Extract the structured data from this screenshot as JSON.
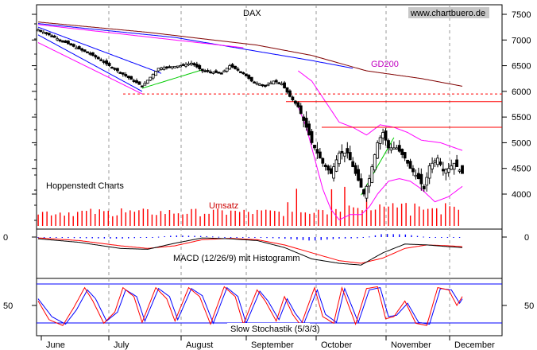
{
  "title": "DAX",
  "source": "www.chartbuero.de",
  "provider": "Hoppenstedt Charts",
  "volume_label": "Umsatz",
  "gd200_label": "GD200",
  "macd_label": "MACD (12/26/9) mit Histogramm",
  "stoch_label": "Slow Stochastik (5/3/3)",
  "colors": {
    "candles": "#000000",
    "ma200": "#800000",
    "bollinger": "#ff00ff",
    "channel": "#0000ff",
    "trend": "#00cc00",
    "resistance": "#ff0000",
    "support": "#ff0000",
    "volume": "#ff0000",
    "macd": "#000000",
    "signal": "#ff0000",
    "histogram": "#0000ff",
    "stoch_k": "#ff0000",
    "stoch_d": "#0000ff"
  },
  "chart_data": {
    "type": "candlestick",
    "title": "DAX",
    "y_ticks": [
      "7500",
      "7000",
      "6500",
      "6000",
      "5500",
      "5000",
      "4500",
      "4000"
    ],
    "y_range": [
      3450,
      7700
    ],
    "months": [
      "June",
      "July",
      "August",
      "September",
      "October",
      "November",
      "December"
    ],
    "resistance_levels": [
      5800,
      5300
    ],
    "support_level_dashed": 5950,
    "price_series": {
      "bars": 140,
      "close_knots": [
        [
          0,
          7200
        ],
        [
          8,
          7000
        ],
        [
          20,
          6700
        ],
        [
          35,
          6200
        ],
        [
          38,
          6100
        ],
        [
          44,
          6450
        ],
        [
          52,
          6500
        ],
        [
          56,
          6550
        ],
        [
          60,
          6400
        ],
        [
          67,
          6350
        ],
        [
          70,
          6500
        ],
        [
          75,
          6350
        ],
        [
          78,
          6200
        ],
        [
          83,
          6100
        ],
        [
          86,
          6200
        ],
        [
          89,
          6150
        ],
        [
          92,
          5900
        ],
        [
          95,
          5700
        ],
        [
          98,
          5300
        ],
        [
          100,
          5000
        ],
        [
          104,
          4600
        ],
        [
          107,
          4400
        ],
        [
          110,
          4800
        ],
        [
          113,
          4800
        ],
        [
          116,
          4400
        ],
        [
          119,
          4000
        ],
        [
          121,
          4300
        ],
        [
          124,
          5000
        ],
        [
          126,
          5200
        ],
        [
          128,
          4900
        ],
        [
          131,
          4900
        ],
        [
          134,
          4700
        ],
        [
          136,
          4500
        ],
        [
          139,
          4300
        ],
        [
          141,
          4100
        ],
        [
          143,
          4550
        ],
        [
          146,
          4700
        ],
        [
          148,
          4450
        ],
        [
          150,
          4500
        ],
        [
          152,
          4600
        ],
        [
          155,
          4400
        ]
      ],
      "ma200_knots": [
        [
          0,
          7350
        ],
        [
          40,
          7150
        ],
        [
          80,
          6900
        ],
        [
          100,
          6700
        ],
        [
          120,
          6400
        ],
        [
          140,
          6250
        ],
        [
          155,
          6100
        ]
      ],
      "bb_upper_knots": [
        [
          95,
          6400
        ],
        [
          100,
          6200
        ],
        [
          105,
          5800
        ],
        [
          110,
          5400
        ],
        [
          115,
          5300
        ],
        [
          120,
          5150
        ],
        [
          125,
          5350
        ],
        [
          130,
          5300
        ],
        [
          135,
          5200
        ],
        [
          140,
          5050
        ],
        [
          147,
          5000
        ],
        [
          155,
          4850
        ]
      ],
      "bb_lower_knots": [
        [
          95,
          5700
        ],
        [
          98,
          5300
        ],
        [
          101,
          4700
        ],
        [
          104,
          4100
        ],
        [
          107,
          3700
        ],
        [
          110,
          3500
        ],
        [
          114,
          3600
        ],
        [
          118,
          3600
        ],
        [
          121,
          3750
        ],
        [
          124,
          4000
        ],
        [
          128,
          4250
        ],
        [
          132,
          4300
        ],
        [
          136,
          4250
        ],
        [
          140,
          4100
        ],
        [
          145,
          3850
        ],
        [
          150,
          3950
        ],
        [
          155,
          4150
        ]
      ],
      "ch1_upper_knots": [
        [
          0,
          7250
        ],
        [
          45,
          6350
        ]
      ],
      "ch1_lower_knots": [
        [
          0,
          7100
        ],
        [
          38,
          6000
        ]
      ],
      "ch2_upper_knots": [
        [
          0,
          7300
        ],
        [
          75,
          6850
        ]
      ],
      "ch2_lower_knots": [
        [
          0,
          6950
        ],
        [
          38,
          5950
        ]
      ],
      "blue_line_knots": [
        [
          0,
          7320
        ],
        [
          50,
          7050
        ],
        [
          100,
          6600
        ],
        [
          115,
          6450
        ]
      ],
      "trend_green_1": [
        [
          38,
          6060
        ],
        [
          60,
          6420
        ]
      ],
      "trend_green_2": [
        [
          118,
          3980
        ],
        [
          130,
          5100
        ]
      ]
    },
    "volume": {
      "label": "Umsatz",
      "peaks": [
        [
          94,
          78
        ],
        [
          107,
          82
        ],
        [
          112,
          74
        ],
        [
          30,
          40
        ],
        [
          48,
          30
        ],
        [
          70,
          35
        ],
        [
          120,
          60
        ]
      ]
    },
    "macd": {
      "label": "MACD (12/26/9) mit Histogramm",
      "zero_label": "0",
      "macd_knots": [
        [
          0,
          -20
        ],
        [
          15,
          -60
        ],
        [
          30,
          -130
        ],
        [
          40,
          -140
        ],
        [
          50,
          -70
        ],
        [
          60,
          -10
        ],
        [
          70,
          -20
        ],
        [
          80,
          -40
        ],
        [
          90,
          -120
        ],
        [
          100,
          -250
        ],
        [
          110,
          -300
        ],
        [
          118,
          -320
        ],
        [
          126,
          -180
        ],
        [
          134,
          -80
        ],
        [
          142,
          -90
        ],
        [
          150,
          -110
        ],
        [
          155,
          -120
        ]
      ],
      "signal_knots": [
        [
          0,
          -10
        ],
        [
          15,
          -40
        ],
        [
          30,
          -100
        ],
        [
          40,
          -130
        ],
        [
          50,
          -100
        ],
        [
          60,
          -30
        ],
        [
          70,
          -15
        ],
        [
          80,
          -30
        ],
        [
          90,
          -90
        ],
        [
          100,
          -180
        ],
        [
          110,
          -270
        ],
        [
          118,
          -300
        ],
        [
          126,
          -240
        ],
        [
          134,
          -130
        ],
        [
          142,
          -90
        ],
        [
          150,
          -100
        ],
        [
          155,
          -110
        ]
      ]
    },
    "stochastic": {
      "label": "Slow Stochastik (5/3/3)",
      "y_label": "50",
      "k_knots": [
        [
          0,
          60
        ],
        [
          4,
          18
        ],
        [
          9,
          5
        ],
        [
          13,
          45
        ],
        [
          17,
          90
        ],
        [
          20,
          60
        ],
        [
          24,
          10
        ],
        [
          28,
          35
        ],
        [
          31,
          90
        ],
        [
          35,
          70
        ],
        [
          38,
          12
        ],
        [
          43,
          90
        ],
        [
          47,
          65
        ],
        [
          50,
          15
        ],
        [
          55,
          90
        ],
        [
          59,
          70
        ],
        [
          63,
          8
        ],
        [
          68,
          92
        ],
        [
          72,
          70
        ],
        [
          75,
          8
        ],
        [
          80,
          85
        ],
        [
          83,
          60
        ],
        [
          87,
          15
        ],
        [
          90,
          70
        ],
        [
          93,
          30
        ],
        [
          96,
          5
        ],
        [
          101,
          90
        ],
        [
          104,
          25
        ],
        [
          108,
          10
        ],
        [
          111,
          90
        ],
        [
          116,
          8
        ],
        [
          120,
          88
        ],
        [
          124,
          92
        ],
        [
          127,
          20
        ],
        [
          130,
          25
        ],
        [
          134,
          60
        ],
        [
          138,
          10
        ],
        [
          142,
          5
        ],
        [
          146,
          90
        ],
        [
          150,
          85
        ],
        [
          153,
          50
        ],
        [
          155,
          70
        ]
      ],
      "d_knots": [
        [
          0,
          65
        ],
        [
          5,
          25
        ],
        [
          10,
          8
        ],
        [
          14,
          40
        ],
        [
          18,
          85
        ],
        [
          21,
          65
        ],
        [
          25,
          15
        ],
        [
          29,
          35
        ],
        [
          32,
          85
        ],
        [
          36,
          70
        ],
        [
          39,
          15
        ],
        [
          44,
          88
        ],
        [
          48,
          70
        ],
        [
          51,
          18
        ],
        [
          56,
          88
        ],
        [
          60,
          72
        ],
        [
          64,
          10
        ],
        [
          69,
          90
        ],
        [
          73,
          70
        ],
        [
          76,
          10
        ],
        [
          81,
          82
        ],
        [
          84,
          60
        ],
        [
          88,
          18
        ],
        [
          91,
          65
        ],
        [
          94,
          32
        ],
        [
          97,
          8
        ],
        [
          102,
          85
        ],
        [
          105,
          30
        ],
        [
          109,
          12
        ],
        [
          112,
          88
        ],
        [
          117,
          12
        ],
        [
          121,
          85
        ],
        [
          125,
          90
        ],
        [
          128,
          25
        ],
        [
          131,
          28
        ],
        [
          135,
          55
        ],
        [
          139,
          12
        ],
        [
          143,
          8
        ],
        [
          147,
          88
        ],
        [
          151,
          85
        ],
        [
          154,
          55
        ],
        [
          155,
          65
        ]
      ]
    }
  }
}
